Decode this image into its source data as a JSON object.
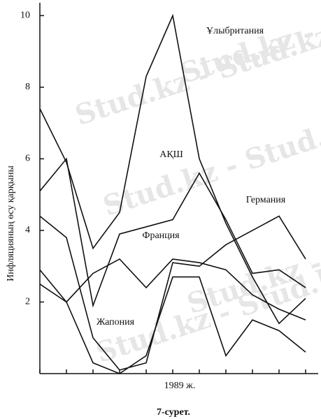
{
  "chart_data": {
    "type": "line",
    "ylabel": "Инфляцияның өсу қарқыны",
    "xlabel": "1989 ж.",
    "caption": "7-сурет.",
    "categories": [
      null,
      null,
      null,
      null,
      null,
      null,
      null,
      null,
      null,
      null,
      null
    ],
    "ylim": [
      0,
      10.3
    ],
    "yticks": [
      2,
      4,
      6,
      8,
      10
    ],
    "series": [
      {
        "name": "Ұлыбритания",
        "color": "#111111",
        "values": [
          7.4,
          5.9,
          3.5,
          4.5,
          8.3,
          10.0,
          6.0,
          4.2,
          2.7,
          1.4,
          2.1
        ]
      },
      {
        "name": "АҚШ",
        "color": "#111111",
        "values": [
          5.1,
          6.0,
          1.9,
          3.9,
          4.1,
          4.3,
          5.6,
          4.3,
          2.8,
          2.9,
          2.4
        ]
      },
      {
        "name": "Германия",
        "color": "#111111",
        "values": [
          4.4,
          3.8,
          1.0,
          0.1,
          0.3,
          3.1,
          3.0,
          3.6,
          4.0,
          4.4,
          3.2
        ]
      },
      {
        "name": "Франция",
        "color": "#111111",
        "values": [
          2.9,
          2.0,
          2.8,
          3.2,
          2.4,
          3.2,
          3.1,
          2.9,
          2.2,
          1.8,
          1.5
        ]
      },
      {
        "name": "Жапония",
        "color": "#111111",
        "values": [
          2.5,
          2.0,
          0.3,
          0.0,
          0.5,
          2.7,
          2.7,
          0.5,
          1.5,
          1.2,
          0.6
        ]
      }
    ],
    "watermark": [
      "Stud.kz - Stud.kz",
      "Stud.kz - Stud.kz",
      "Stud.kz - Stud.kz",
      "Stud.kz - Stud.kz",
      "Stud.kz - Stud.kz"
    ]
  }
}
